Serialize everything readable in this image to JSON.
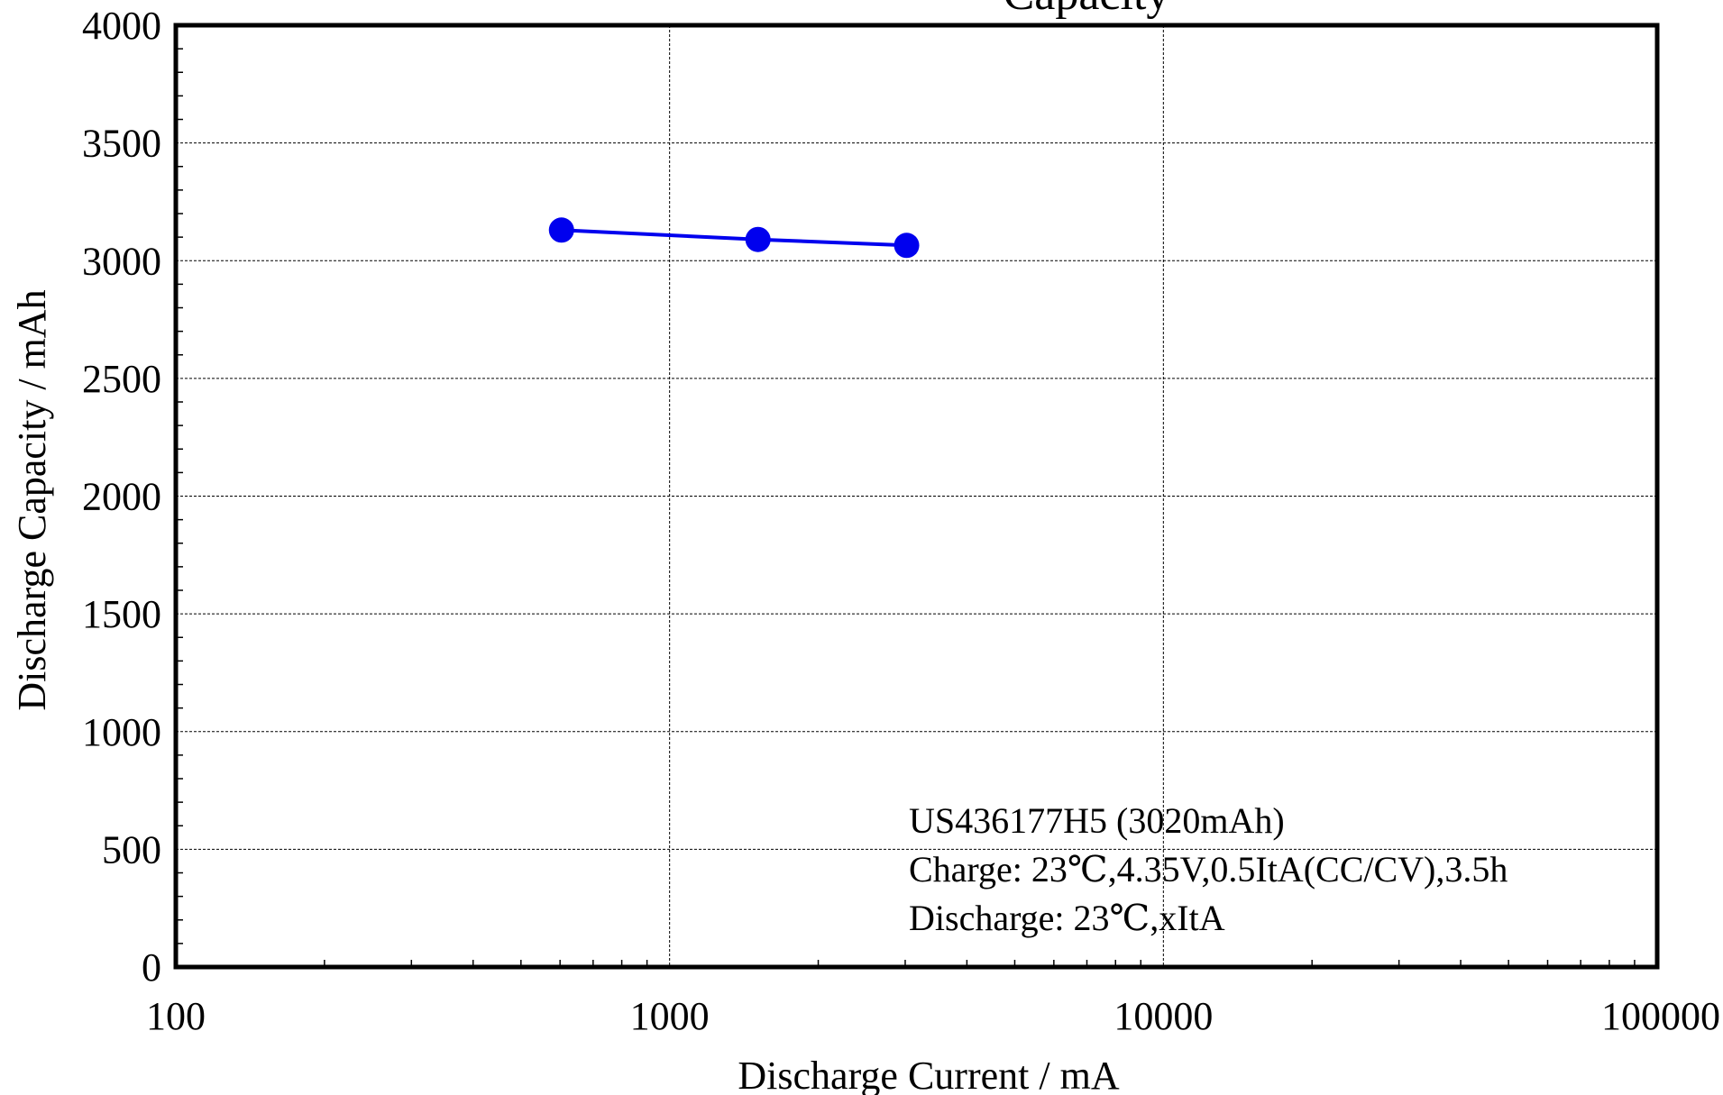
{
  "chart_data": {
    "type": "line",
    "title": "",
    "xlabel": "Discharge Current / mA",
    "ylabel": "Discharge Capacity / mAh",
    "x_scale": "log",
    "xlim": [
      100,
      100000
    ],
    "ylim": [
      0,
      4000
    ],
    "x_ticks": [
      "100",
      "1000",
      "10000",
      "100000"
    ],
    "y_ticks": [
      "0",
      "500",
      "1000",
      "1500",
      "2000",
      "2500",
      "3000",
      "3500",
      "4000"
    ],
    "grid": true,
    "series": [
      {
        "name": "",
        "color": "#0000ee",
        "marker": "circle",
        "x": [
          604,
          1510,
          3020
        ],
        "y": [
          3130,
          3090,
          3065
        ]
      }
    ],
    "annotations": [
      "US436177H5 (3020mAh)",
      "Charge: 23℃,4.35V,0.5ItA(CC/CV),3.5h",
      "Discharge: 23℃,xItA"
    ],
    "partial_title_fragment": "Capacity"
  }
}
